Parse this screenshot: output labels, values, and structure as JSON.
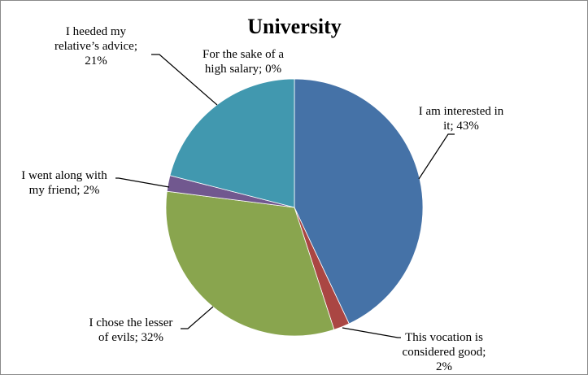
{
  "chart_data": {
    "type": "pie",
    "title": "University",
    "slices": [
      {
        "label_lines": [
          "I am interested in",
          "it; 43%"
        ],
        "category": "I am interested in it",
        "value": 43,
        "color": "#4572a7"
      },
      {
        "label_lines": [
          "This vocation is",
          "considered good;",
          "2%"
        ],
        "category": "This vocation is considered good",
        "value": 2,
        "color": "#aa4643"
      },
      {
        "label_lines": [
          "I chose the lesser",
          "of evils; 32%"
        ],
        "category": "I chose the lesser of evils",
        "value": 32,
        "color": "#89a54e"
      },
      {
        "label_lines": [
          "I went along with",
          "my friend; 2%"
        ],
        "category": "I went along with my friend",
        "value": 2,
        "color": "#71588f"
      },
      {
        "label_lines": [
          "I heeded my",
          "relative’s advice;",
          "21%"
        ],
        "category": "I heeded my relative’s advice",
        "value": 21,
        "color": "#4198af"
      },
      {
        "label_lines": [
          "For the sake of a",
          "high salary; 0%"
        ],
        "category": "For the sake of a high salary",
        "value": 0,
        "color": "#db843d"
      }
    ],
    "legend": "none",
    "data_labels": "outside with leader lines"
  }
}
